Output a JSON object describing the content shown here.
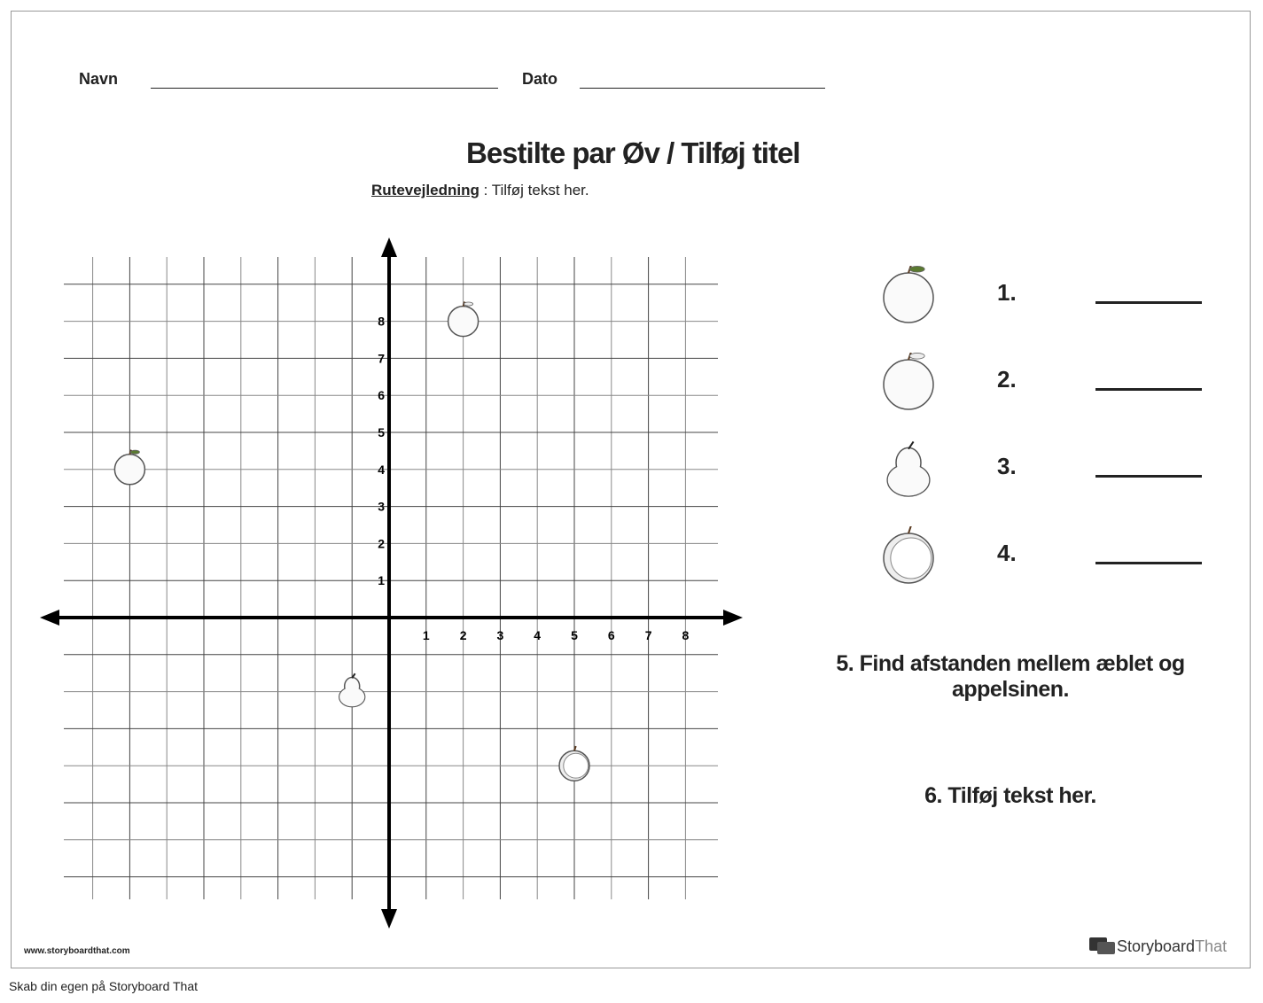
{
  "header": {
    "name_label": "Navn",
    "date_label": "Dato"
  },
  "title": "Bestilte par Øv / Tilføj titel",
  "instructions": {
    "label": "Rutevejledning",
    "text": ": Tilføj tekst her."
  },
  "grid": {
    "x_ticks": [
      "1",
      "2",
      "3",
      "4",
      "5",
      "6",
      "7",
      "8"
    ],
    "y_ticks": [
      "1",
      "2",
      "3",
      "4",
      "5",
      "6",
      "7",
      "8"
    ],
    "points": [
      {
        "fruit": "apple",
        "x": -7,
        "y": 4
      },
      {
        "fruit": "orange",
        "x": 2,
        "y": 8
      },
      {
        "fruit": "pear",
        "x": -1,
        "y": -2
      },
      {
        "fruit": "peach",
        "x": 5,
        "y": -4
      }
    ]
  },
  "questions": {
    "items": [
      {
        "num": "1.",
        "fruit": "apple-icon"
      },
      {
        "num": "2.",
        "fruit": "orange-icon"
      },
      {
        "num": "3.",
        "fruit": "pear-icon"
      },
      {
        "num": "4.",
        "fruit": "peach-icon"
      }
    ],
    "q5": "5. Find afstanden mellem æblet og appelsinen.",
    "q6": "6. Tilføj tekst her."
  },
  "footer": {
    "url": "www.storyboardthat.com",
    "brand_a": "Storyboard",
    "brand_b": "That",
    "caption": "Skab din egen på Storyboard That"
  }
}
